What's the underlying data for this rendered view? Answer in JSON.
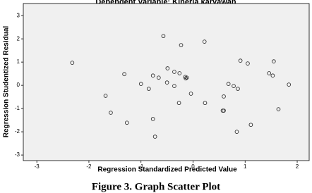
{
  "chart_data": {
    "type": "scatter",
    "title": "Dependent Variable: Kinerja karyawan",
    "x_label": "Regression Standardized Predicted Value",
    "y_label": "Regression Studentized Residual",
    "caption": "Figure 3. Graph Scatter Plot",
    "xlim": [
      -3.26,
      2.23
    ],
    "ylim": [
      -3.24,
      3.52
    ],
    "xticks": [
      -3,
      -2,
      -1,
      0,
      1,
      2
    ],
    "yticks": [
      -3,
      -2,
      -1,
      0,
      1,
      2,
      3
    ],
    "marker_color": "#333333",
    "background": "#f0f0f0",
    "x": [
      -2.32,
      -1.32,
      -1.68,
      -1.58,
      -1.27,
      -0.77,
      -0.66,
      -0.85,
      -1.0,
      -0.57,
      -0.23,
      0.22,
      -0.49,
      -0.5,
      -0.36,
      -0.36,
      -0.26,
      -0.15,
      -0.12,
      -0.14,
      -0.27,
      -0.77,
      -0.73,
      -0.04,
      0.23,
      0.57,
      0.59,
      0.59,
      0.68,
      0.78,
      0.86,
      0.91,
      1.05,
      0.84,
      1.11,
      1.46,
      1.53,
      1.55,
      1.64,
      1.84
    ],
    "values": [
      0.97,
      0.48,
      -0.45,
      -1.18,
      -1.61,
      0.42,
      0.33,
      -0.15,
      0.06,
      2.12,
      1.73,
      1.88,
      0.73,
      0.12,
      0.58,
      -0.03,
      0.52,
      0.36,
      0.33,
      0.3,
      -0.76,
      -1.45,
      -2.21,
      -0.36,
      -0.76,
      -1.09,
      -1.09,
      -0.48,
      0.06,
      -0.03,
      -0.15,
      1.06,
      0.94,
      -2.0,
      -1.7,
      0.52,
      0.42,
      1.03,
      -1.03,
      0.03
    ]
  }
}
